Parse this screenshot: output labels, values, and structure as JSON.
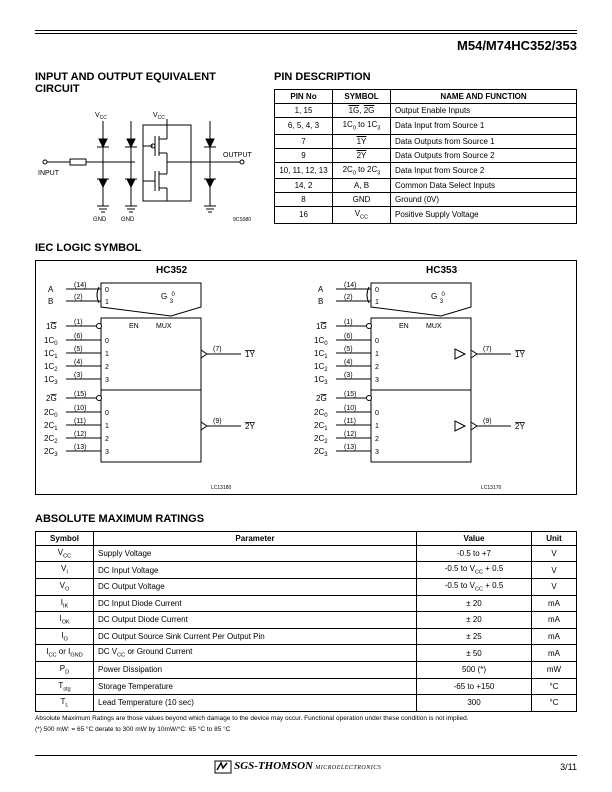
{
  "page": {
    "part_number": "M54/M74HC352/353",
    "page_number": "3/11"
  },
  "sections": {
    "equiv_circuit_title": "INPUT AND OUTPUT EQUIVALENT CIRCUIT",
    "pin_desc_title": "PIN DESCRIPTION",
    "iec_title": "IEC LOGIC SYMBOL",
    "amr_title": "ABSOLUTE MAXIMUM RATINGS"
  },
  "equiv_circuit": {
    "labels": {
      "vcc1": "V",
      "vcc2": "V",
      "input": "INPUT",
      "output": "OUTPUT",
      "gnd1": "GND",
      "gnd2": "GND",
      "ref": "9CS980"
    },
    "colors": {
      "line": "#000000",
      "fill": "#ffffff"
    }
  },
  "pin_table": {
    "headers": [
      "PIN No",
      "SYMBOL",
      "NAME AND FUNCTION"
    ],
    "rows": [
      {
        "pin": "1, 15",
        "symbol_html": "<span class='ov'>1G</span>, <span class='ov'>2G</span>",
        "name": "Output Enable Inputs"
      },
      {
        "pin": "6, 5, 4, 3",
        "symbol_html": "1C<sub>0</sub> to 1C<sub>3</sub>",
        "name": "Data Input from Source 1"
      },
      {
        "pin": "7",
        "symbol_html": "<span class='ov'>1Y</span>",
        "name": "Data Outputs from Source 1"
      },
      {
        "pin": "9",
        "symbol_html": "<span class='ov'>2Y</span>",
        "name": "Data Outputs from Source 2"
      },
      {
        "pin": "10, 11, 12, 13",
        "symbol_html": "2C<sub>0</sub> to 2C<sub>3</sub>",
        "name": "Data Input from Source 2"
      },
      {
        "pin": "14, 2",
        "symbol_html": "A, B",
        "name": "Common Data Select Inputs"
      },
      {
        "pin": "8",
        "symbol_html": "GND",
        "name": "Ground (0V)"
      },
      {
        "pin": "16",
        "symbol_html": "V<sub>CC</sub>",
        "name": "Positive Supply Voltage"
      }
    ]
  },
  "iec": {
    "left_title": "HC352",
    "right_title": "HC353",
    "ref_left": "LC13180",
    "ref_right": "LC13170",
    "mux_label": "MUX",
    "en_label": "EN",
    "g_label_top": "G",
    "g_label_frac": "0\n3",
    "left": {
      "inputs": [
        {
          "label": "A",
          "pin": "(14)"
        },
        {
          "label": "B",
          "pin": "(2)"
        },
        {
          "label_html": "1<span class='ov'>G</span>",
          "pin": "(1)"
        },
        {
          "label_html": "1C<sub>0</sub>",
          "pin": "(6)"
        },
        {
          "label_html": "1C<sub>1</sub>",
          "pin": "(5)"
        },
        {
          "label_html": "1C<sub>2</sub>",
          "pin": "(4)"
        },
        {
          "label_html": "1C<sub>3</sub>",
          "pin": "(3)"
        },
        {
          "label_html": "2<span class='ov'>G</span>",
          "pin": "(15)"
        },
        {
          "label_html": "2C<sub>0</sub>",
          "pin": "(10)"
        },
        {
          "label_html": "2C<sub>1</sub>",
          "pin": "(11)"
        },
        {
          "label_html": "2C<sub>2</sub>",
          "pin": "(12)"
        },
        {
          "label_html": "2C<sub>3</sub>",
          "pin": "(13)"
        }
      ],
      "outputs": [
        {
          "label_html": "<span class='ov'>1Y</span>",
          "pin": "(7)"
        },
        {
          "label_html": "<span class='ov'>2Y</span>",
          "pin": "(9)"
        }
      ]
    }
  },
  "amr_table": {
    "headers": [
      "Symbol",
      "Parameter",
      "Value",
      "Unit"
    ],
    "rows": [
      {
        "sym_html": "V<sub>CC</sub>",
        "param": "Supply Voltage",
        "value": "-0.5 to +7",
        "unit": "V"
      },
      {
        "sym_html": "V<sub>I</sub>",
        "param": "DC Input Voltage",
        "value_html": "-0.5 to V<sub>CC</sub> + 0.5",
        "unit": "V"
      },
      {
        "sym_html": "V<sub>O</sub>",
        "param": "DC Output Voltage",
        "value_html": "-0.5 to V<sub>CC</sub> + 0.5",
        "unit": "V"
      },
      {
        "sym_html": "I<sub>IK</sub>",
        "param": "DC Input Diode Current",
        "value": "± 20",
        "unit": "mA"
      },
      {
        "sym_html": "I<sub>OK</sub>",
        "param": "DC Output Diode Current",
        "value": "± 20",
        "unit": "mA"
      },
      {
        "sym_html": "I<sub>O</sub>",
        "param": "DC Output Source Sink Current Per Output Pin",
        "value": "± 25",
        "unit": "mA"
      },
      {
        "sym_html": "I<sub>CC</sub> or I<sub>GND</sub>",
        "param": "DC V<sub>CC</sub> or Ground Current",
        "value": "± 50",
        "unit": "mA"
      },
      {
        "sym_html": "P<sub>D</sub>",
        "param": "Power Dissipation",
        "value": "500 (*)",
        "unit": "mW"
      },
      {
        "sym_html": "T<sub>stg</sub>",
        "param": "Storage Temperature",
        "value": "-65 to +150",
        "unit": "°C"
      },
      {
        "sym_html": "T<sub>L</sub>",
        "param": "Lead Temperature (10 sec)",
        "value": "300",
        "unit": "°C"
      }
    ],
    "footnote1": "Absolute Maximum Ratings are those values beyond which damage to the device may occur. Functional operation under these condition is not implied.",
    "footnote2": "(*) 500 mW: = 65 °C derate to 300 mW by 10mW/°C: 65 °C to 85 °C"
  },
  "footer": {
    "company": "SGS-THOMSON",
    "sub": "MICROELECTRONICS"
  }
}
